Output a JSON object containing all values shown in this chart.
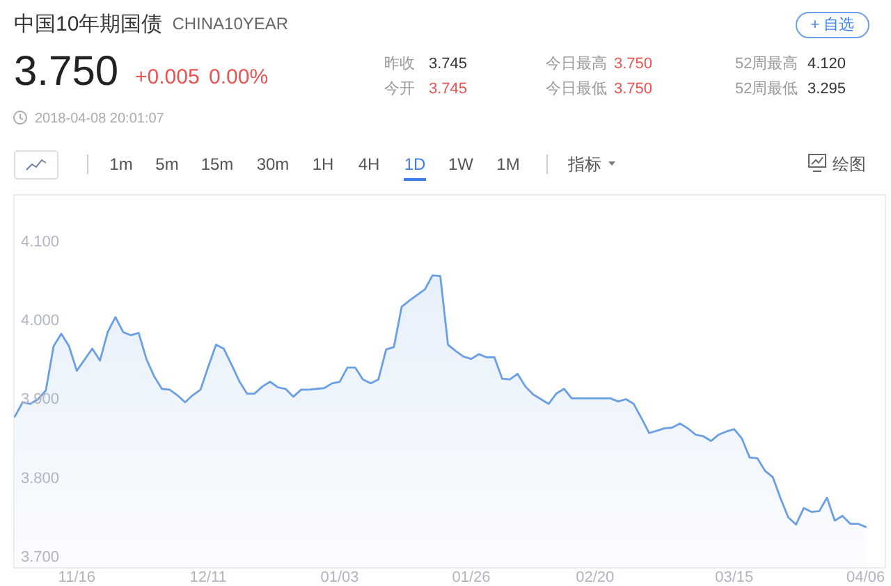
{
  "chart_data": {
    "type": "area",
    "title": "中国10年期国债",
    "subtitle": "CHINA10YEAR",
    "categories": [
      null,
      null,
      null,
      null,
      null,
      null,
      null,
      null,
      "11/16",
      null,
      null,
      null,
      null,
      null,
      null,
      null,
      null,
      null,
      null,
      null,
      null,
      null,
      null,
      null,
      null,
      "12/11",
      null,
      null,
      null,
      null,
      null,
      null,
      null,
      null,
      null,
      null,
      null,
      null,
      null,
      null,
      null,
      null,
      "01/03",
      null,
      null,
      null,
      null,
      null,
      null,
      null,
      null,
      null,
      null,
      null,
      null,
      null,
      null,
      null,
      null,
      "01/26",
      null,
      null,
      null,
      null,
      null,
      null,
      null,
      null,
      null,
      null,
      null,
      null,
      null,
      null,
      null,
      "02/20",
      null,
      null,
      null,
      null,
      null,
      null,
      null,
      null,
      null,
      null,
      null,
      null,
      null,
      null,
      null,
      null,
      null,
      "03/15",
      null,
      null,
      null,
      null,
      null,
      null,
      null,
      null,
      null,
      null,
      null,
      null,
      null,
      null,
      null,
      null,
      "04/06"
    ],
    "series": [
      {
        "color": "#6a9fe3",
        "values": [
          3.877,
          3.895,
          3.893,
          3.899,
          3.91,
          3.966,
          3.982,
          3.966,
          3.935,
          3.949,
          3.963,
          3.948,
          3.984,
          4.003,
          3.984,
          3.98,
          3.983,
          3.95,
          3.928,
          3.912,
          3.911,
          3.904,
          3.895,
          3.904,
          3.911,
          3.94,
          3.968,
          3.963,
          3.943,
          3.922,
          3.906,
          3.906,
          3.915,
          3.921,
          3.914,
          3.912,
          3.902,
          3.911,
          3.911,
          3.912,
          3.913,
          3.919,
          3.921,
          3.939,
          3.939,
          3.924,
          3.919,
          3.924,
          3.962,
          3.965,
          4.016,
          4.024,
          4.031,
          4.038,
          4.056,
          4.055,
          3.968,
          3.96,
          3.953,
          3.95,
          3.956,
          3.952,
          3.952,
          3.925,
          3.924,
          3.931,
          3.915,
          3.905,
          3.899,
          3.893,
          3.906,
          3.912,
          3.9,
          3.9,
          3.9,
          3.9,
          3.9,
          3.9,
          3.896,
          3.899,
          3.893,
          3.875,
          3.856,
          3.859,
          3.862,
          3.863,
          3.868,
          3.862,
          3.854,
          3.852,
          3.846,
          3.854,
          3.858,
          3.861,
          3.849,
          3.825,
          3.824,
          3.808,
          3.8,
          3.773,
          3.749,
          3.74,
          3.761,
          3.756,
          3.757,
          3.774,
          3.745,
          3.751,
          3.741,
          3.741,
          3.737
        ]
      }
    ],
    "ylim": [
      3.685,
      4.158
    ],
    "yticks": [
      {
        "value": 3.7,
        "label": "3.700"
      },
      {
        "value": 3.8,
        "label": "3.800"
      },
      {
        "value": 3.9,
        "label": "3.900"
      },
      {
        "value": 4.0,
        "label": "4.000"
      },
      {
        "value": 4.1,
        "label": "4.100"
      }
    ],
    "annotations": [
      "3.750",
      "+0.005",
      "0.00%",
      "昨收",
      "3.745",
      "今开",
      "3.745",
      "今日最高",
      "3.750",
      "今日最低",
      "3.750",
      "52周最高",
      "4.120",
      "52周最低",
      "3.295",
      "2018-04-08 20:01:07",
      "+ 自选",
      "1m",
      "5m",
      "15m",
      "30m",
      "1H",
      "4H",
      "1D",
      "1W",
      "1M",
      "指标",
      "绘图"
    ]
  }
}
